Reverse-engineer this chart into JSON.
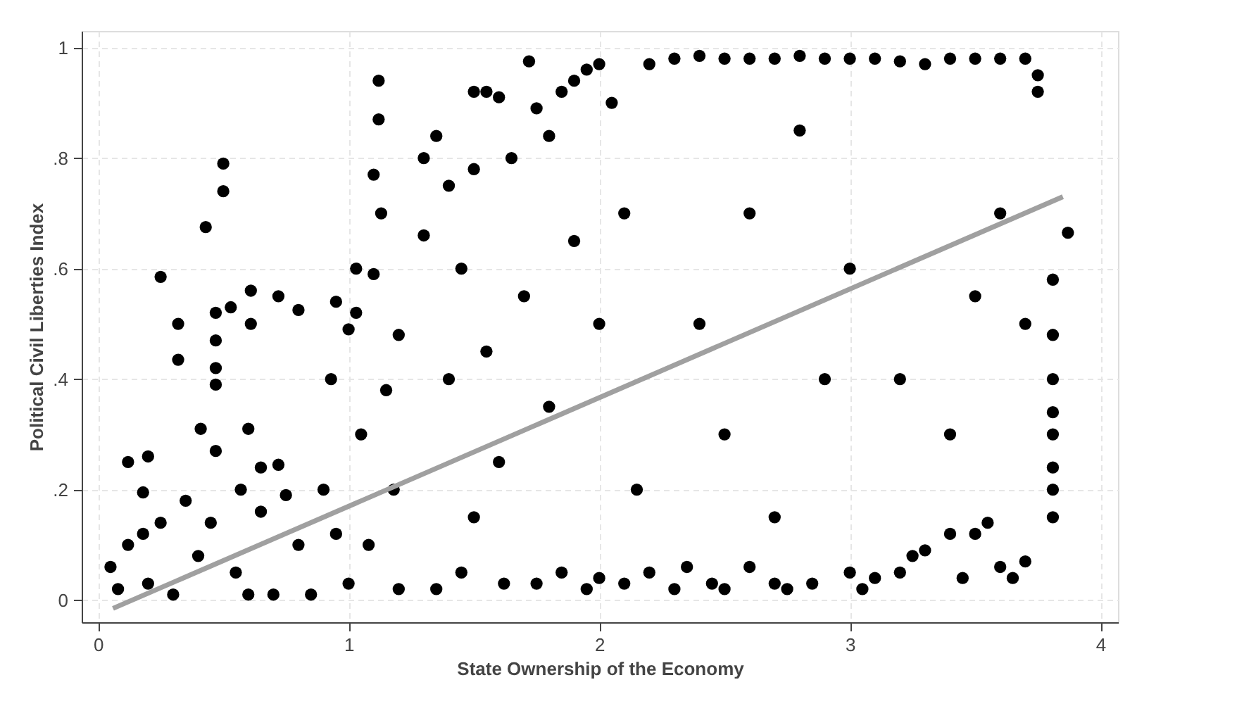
{
  "chart_data": {
    "type": "scatter",
    "xlabel": "State Ownership of the Economy",
    "ylabel": "Political Civil Liberties Index",
    "xlim": [
      -0.065,
      4.07
    ],
    "ylim": [
      -0.04,
      1.03
    ],
    "xticks": [
      0,
      1,
      2,
      3,
      4
    ],
    "yticks": [
      0,
      {
        "value": 0.2,
        "label": ".2"
      },
      {
        "value": 0.4,
        "label": ".4"
      },
      {
        "value": 0.6,
        "label": ".6"
      },
      {
        "value": 0.8,
        "label": ".8"
      },
      1
    ],
    "grid": true,
    "series": [
      {
        "marker": "circle",
        "color": "#000000",
        "x": [
          0.12,
          0.18,
          0.2,
          0.25,
          0.32,
          0.32,
          0.43,
          0.47,
          0.5,
          0.5,
          0.47,
          0.47,
          0.47,
          0.47,
          0.41,
          0.53,
          0.6,
          0.61,
          0.61,
          0.72,
          0.8,
          0.57,
          0.72,
          0.65,
          0.05,
          0.08,
          0.12,
          0.18,
          0.2,
          0.25,
          0.3,
          0.35,
          0.4,
          0.45,
          0.55,
          0.6,
          0.65,
          0.7,
          0.75,
          0.85,
          0.8,
          0.9,
          0.93,
          0.95,
          1.0,
          1.03,
          1.03,
          1.1,
          1.1,
          1.12,
          1.12,
          1.13,
          1.0,
          1.05,
          1.15,
          1.2,
          1.2,
          1.18,
          1.08,
          0.95,
          1.3,
          1.3,
          1.35,
          1.4,
          1.45,
          1.5,
          1.55,
          1.6,
          1.5,
          1.35,
          1.45,
          1.55,
          1.6,
          1.65,
          1.4,
          1.5,
          1.62,
          1.7,
          1.72,
          1.75,
          1.8,
          1.85,
          1.9,
          1.95,
          2.0,
          2.05,
          1.75,
          1.85,
          1.95,
          2.0,
          2.1,
          1.8,
          1.9,
          2.0,
          2.1,
          2.15,
          2.2,
          2.2,
          2.3,
          2.4,
          2.5,
          2.6,
          2.7,
          2.8,
          2.9,
          2.3,
          2.35,
          2.45,
          2.5,
          2.6,
          2.7,
          2.75,
          2.85,
          2.4,
          2.5,
          2.6,
          2.7,
          2.8,
          2.9,
          3.0,
          3.1,
          3.2,
          3.3,
          3.4,
          3.5,
          3.6,
          3.7,
          3.75,
          3.75,
          3.0,
          3.05,
          3.1,
          3.2,
          3.25,
          3.3,
          3.4,
          3.45,
          3.5,
          3.55,
          3.6,
          3.65,
          3.7,
          3.0,
          3.2,
          3.4,
          3.5,
          3.6,
          3.7,
          3.81,
          3.81,
          3.81,
          3.81,
          3.81,
          3.81,
          3.81,
          3.81,
          3.87
        ],
        "values": [
          0.25,
          0.195,
          0.26,
          0.585,
          0.5,
          0.435,
          0.675,
          0.52,
          0.79,
          0.74,
          0.47,
          0.42,
          0.39,
          0.27,
          0.31,
          0.53,
          0.31,
          0.56,
          0.5,
          0.55,
          0.525,
          0.2,
          0.245,
          0.24,
          0.06,
          0.02,
          0.1,
          0.12,
          0.03,
          0.14,
          0.01,
          0.18,
          0.08,
          0.14,
          0.05,
          0.01,
          0.16,
          0.01,
          0.19,
          0.01,
          0.1,
          0.2,
          0.4,
          0.54,
          0.49,
          0.6,
          0.52,
          0.59,
          0.77,
          0.94,
          0.87,
          0.7,
          0.03,
          0.3,
          0.38,
          0.48,
          0.02,
          0.2,
          0.1,
          0.12,
          0.66,
          0.8,
          0.84,
          0.75,
          0.6,
          0.92,
          0.92,
          0.91,
          0.78,
          0.02,
          0.05,
          0.45,
          0.25,
          0.8,
          0.4,
          0.15,
          0.03,
          0.55,
          0.975,
          0.89,
          0.84,
          0.92,
          0.94,
          0.96,
          0.97,
          0.9,
          0.03,
          0.05,
          0.02,
          0.04,
          0.03,
          0.35,
          0.65,
          0.5,
          0.7,
          0.2,
          0.97,
          0.05,
          0.98,
          0.985,
          0.98,
          0.98,
          0.98,
          0.985,
          0.98,
          0.02,
          0.06,
          0.03,
          0.02,
          0.06,
          0.03,
          0.02,
          0.03,
          0.5,
          0.3,
          0.7,
          0.15,
          0.85,
          0.4,
          0.98,
          0.98,
          0.975,
          0.97,
          0.98,
          0.98,
          0.98,
          0.98,
          0.95,
          0.92,
          0.05,
          0.02,
          0.04,
          0.05,
          0.08,
          0.09,
          0.12,
          0.04,
          0.12,
          0.14,
          0.06,
          0.04,
          0.07,
          0.6,
          0.4,
          0.3,
          0.55,
          0.7,
          0.5,
          0.58,
          0.48,
          0.4,
          0.34,
          0.3,
          0.24,
          0.2,
          0.15,
          0.665
        ]
      },
      {
        "type": "line",
        "color": "#a0a0a0",
        "x": [
          0.06,
          3.85
        ],
        "values": [
          -0.015,
          0.73
        ]
      }
    ]
  }
}
